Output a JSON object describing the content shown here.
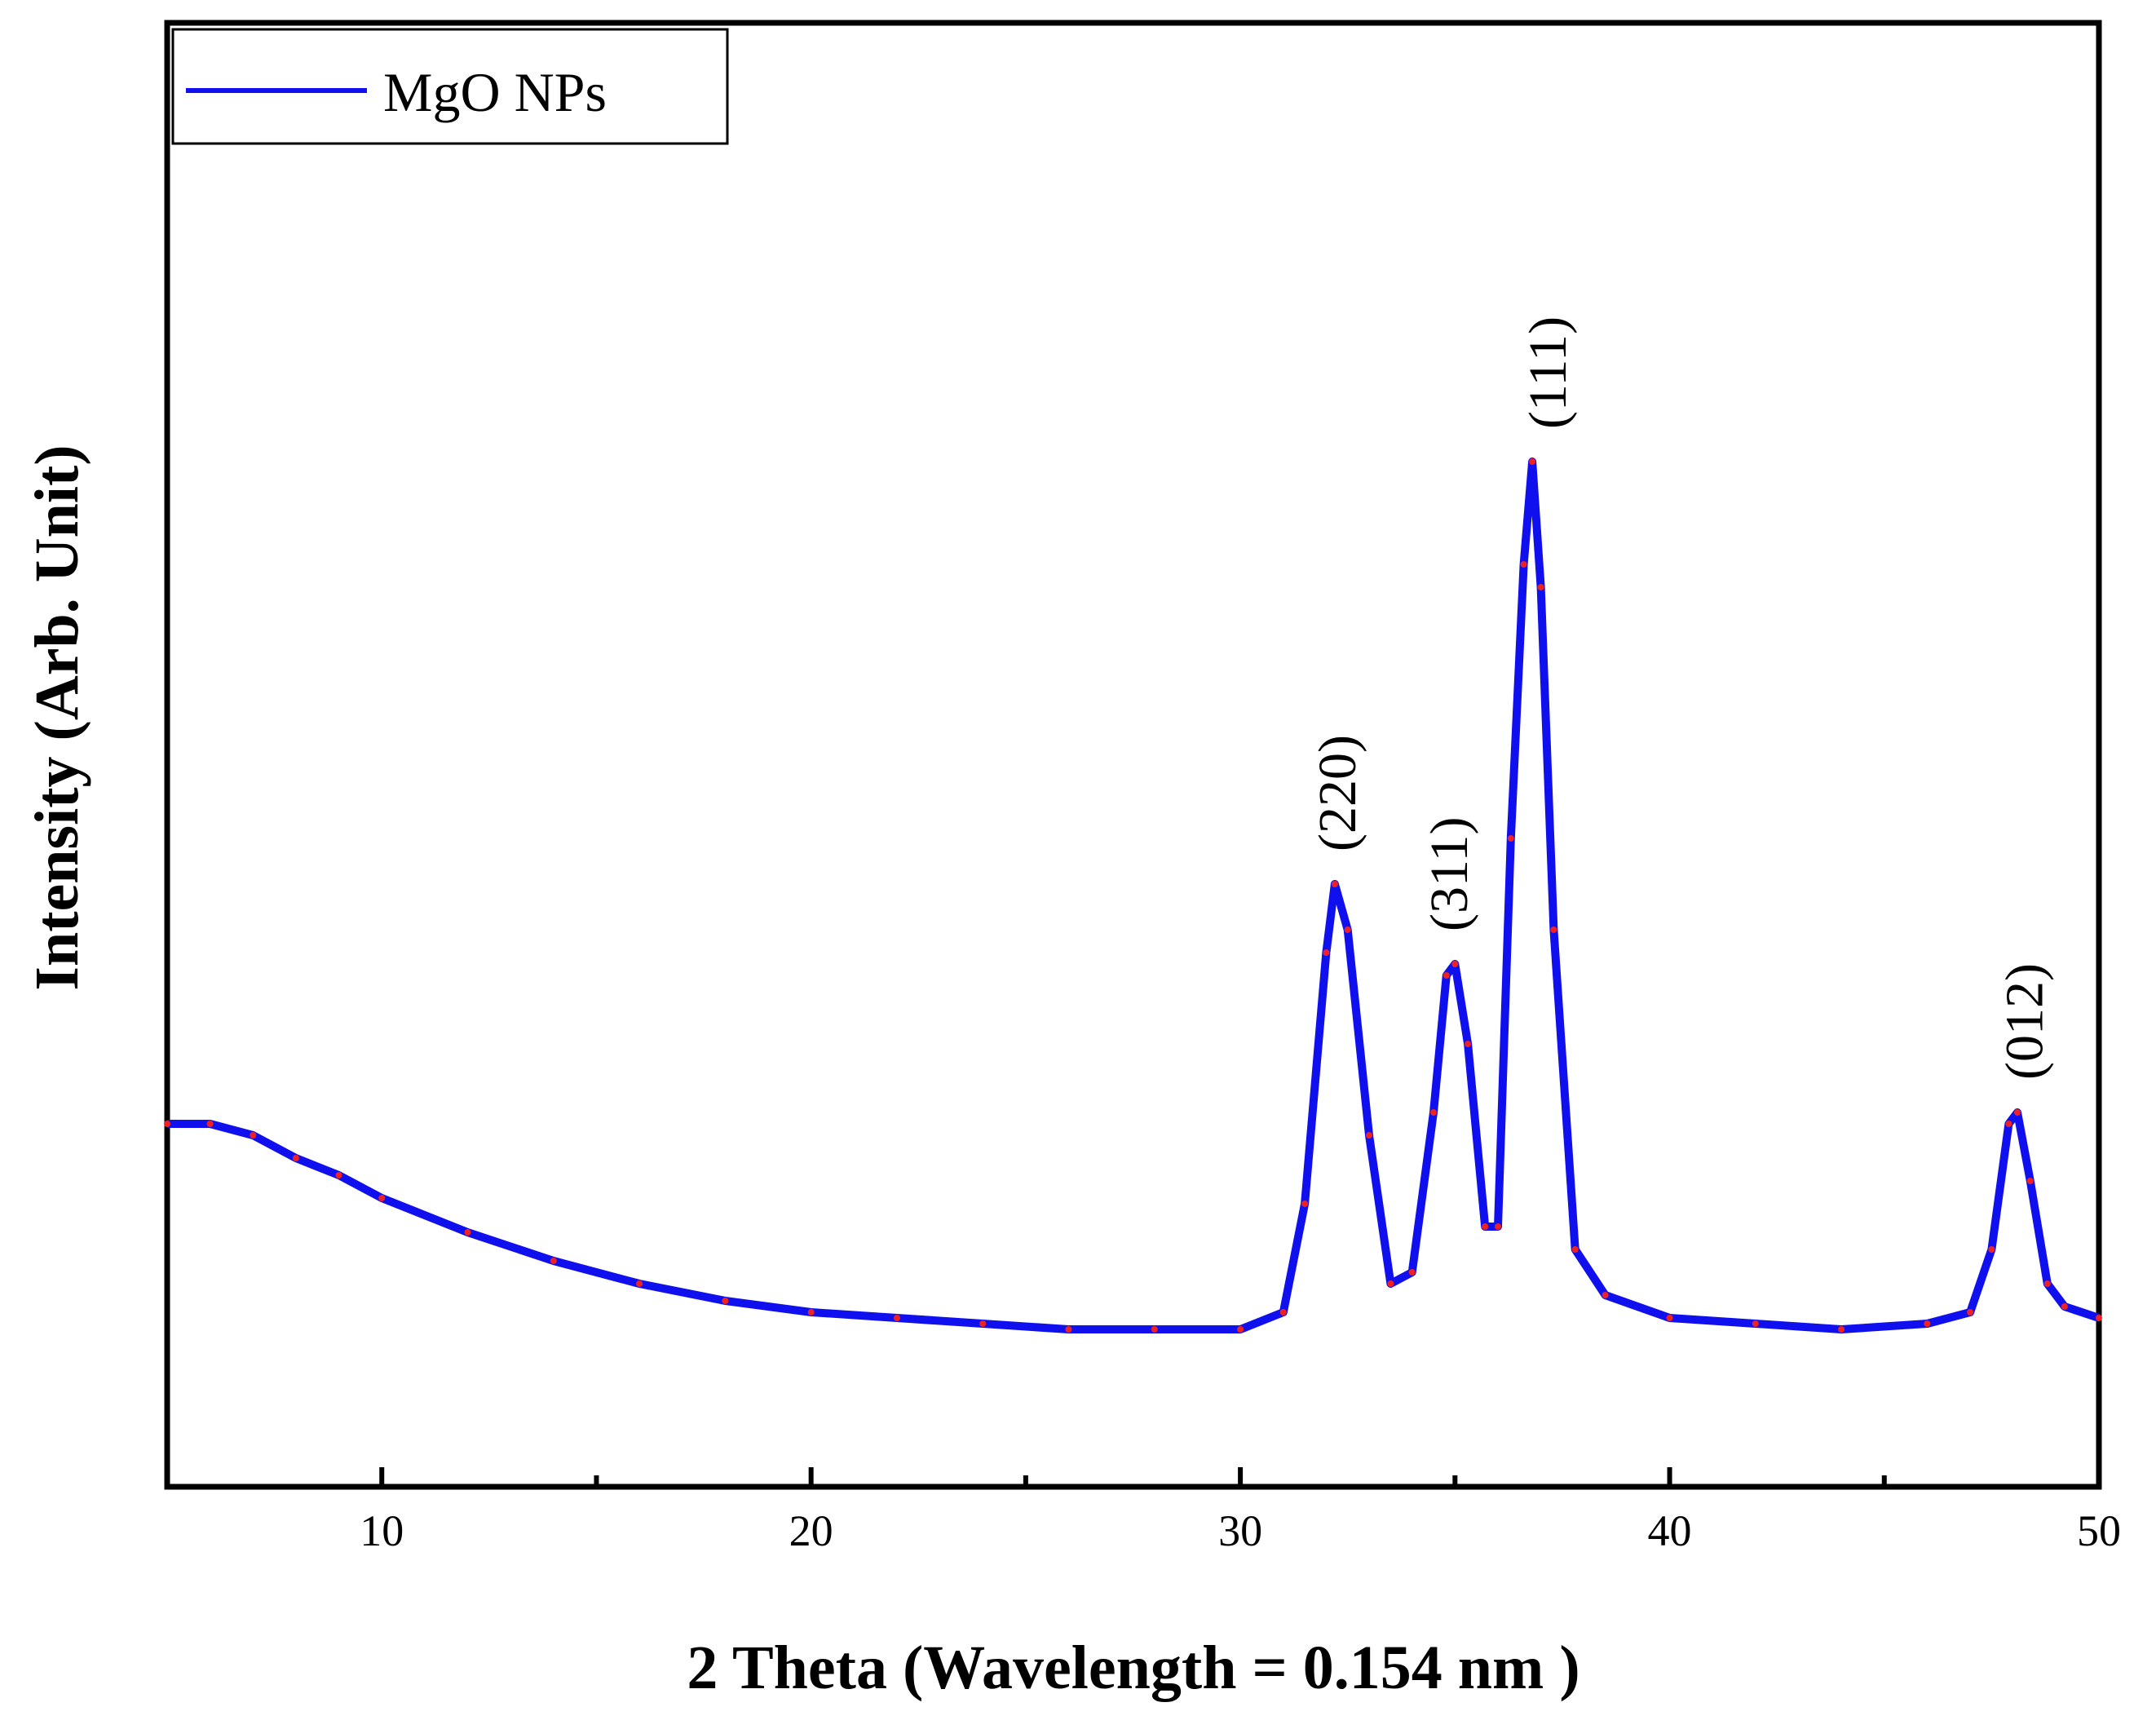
{
  "chart_data": {
    "type": "line",
    "title": "",
    "xlabel": "2 Theta (Wavelength = 0.154 nm )",
    "ylabel": "Intensity (Arb. Unit)",
    "xlim": [
      5,
      50
    ],
    "ylim": [
      0,
      100
    ],
    "x_ticks": [
      10,
      20,
      30,
      40,
      50
    ],
    "y_ticks_shown": false,
    "grid": false,
    "legend": {
      "position": "top-left",
      "entries": [
        {
          "name": "MgO NPs",
          "color": "#1010ee"
        }
      ]
    },
    "colors": {
      "line": "#1010ee",
      "marker": "#ee2222",
      "axis": "#000000",
      "background": "#ffffff"
    },
    "series": [
      {
        "name": "MgO NPs",
        "x": [
          5,
          6,
          7,
          8,
          9,
          10,
          12,
          14,
          16,
          18,
          20,
          22,
          24,
          26,
          28,
          30,
          31,
          31.5,
          32,
          32.2,
          32.5,
          33,
          33.5,
          34,
          34.5,
          34.8,
          35,
          35.3,
          35.7,
          36,
          36.3,
          36.6,
          36.8,
          37,
          37.3,
          37.8,
          38.5,
          40,
          42,
          44,
          46,
          47,
          47.5,
          47.9,
          48.1,
          48.4,
          48.8,
          49.2,
          50
        ],
        "y": [
          23,
          23,
          22,
          20,
          18.5,
          16.5,
          13.5,
          11,
          9,
          7.5,
          6.5,
          6,
          5.5,
          5,
          5,
          5,
          6.5,
          16,
          38,
          44,
          40,
          22,
          9,
          10,
          24,
          36,
          37,
          30,
          14,
          14,
          48,
          72,
          81,
          70,
          40,
          12,
          8,
          6,
          5.5,
          5,
          5.5,
          6.5,
          12,
          23,
          24,
          18,
          9,
          7,
          6
        ]
      }
    ],
    "annotations": [
      {
        "text": "(220)",
        "x": 32.3,
        "rotation": -90
      },
      {
        "text": "(311)",
        "x": 34.9,
        "rotation": -90
      },
      {
        "text": "(111)",
        "x": 37.2,
        "rotation": -90
      },
      {
        "text": "(012)",
        "x": 48.3,
        "rotation": -90
      }
    ]
  }
}
